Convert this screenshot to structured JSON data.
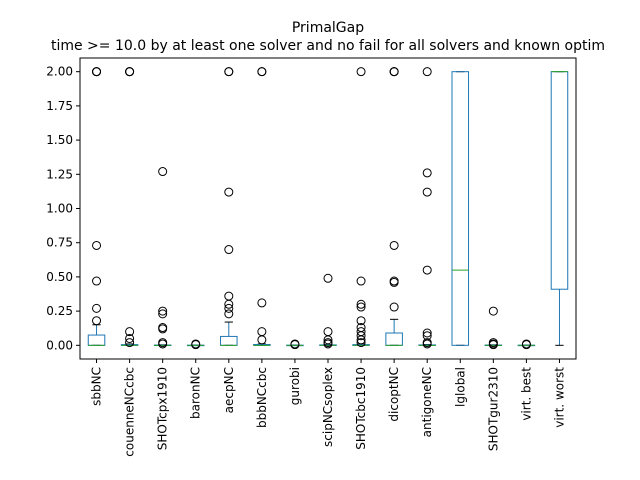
{
  "chart_data": {
    "type": "boxplot",
    "title": "PrimalGap",
    "subtitle": "time >= 10.0 by at least one solver and no fail for all solvers and known optim",
    "xlabel": "",
    "ylabel": "",
    "ylim": [
      -0.1,
      2.1
    ],
    "y_ticks": [
      "0.00",
      "0.25",
      "0.50",
      "0.75",
      "1.00",
      "1.25",
      "1.50",
      "1.75",
      "2.00"
    ],
    "grid": false,
    "categories": [
      "sbbNC",
      "couenneNCcbc",
      "SHOTcpx1910",
      "baronNC",
      "aecpNC",
      "bbbNCcbc",
      "gurobi",
      "scipNCsoplex",
      "SHOTcbc1910",
      "dicoptNC",
      "antigoneNC",
      "lglobal",
      "SHOTgur2310",
      "virt. best",
      "virt. worst"
    ],
    "boxes": [
      {
        "q1": 0.0,
        "median": 0.0,
        "q3": 0.075,
        "whisker_low": 0.0,
        "whisker_high": 0.15,
        "outliers": [
          2.0,
          2.0,
          2.0,
          0.73,
          0.47,
          0.27,
          0.18
        ]
      },
      {
        "q1": 0.0,
        "median": 0.0,
        "q3": 0.005,
        "whisker_low": 0.0,
        "whisker_high": 0.01,
        "outliers": [
          2.0,
          2.0,
          2.0,
          0.1,
          0.05,
          0.02
        ]
      },
      {
        "q1": 0.0,
        "median": 0.0,
        "q3": 0.002,
        "whisker_low": 0.0,
        "whisker_high": 0.004,
        "outliers": [
          1.27,
          0.25,
          0.23,
          0.13,
          0.12,
          0.02,
          0.01
        ]
      },
      {
        "q1": 0.0,
        "median": 0.0,
        "q3": 0.001,
        "whisker_low": 0.0,
        "whisker_high": 0.002,
        "outliers": [
          0.01,
          0.005
        ]
      },
      {
        "q1": 0.0,
        "median": 0.0,
        "q3": 0.065,
        "whisker_low": 0.0,
        "whisker_high": 0.17,
        "outliers": [
          2.0,
          2.0,
          1.12,
          0.7,
          0.36,
          0.3,
          0.27,
          0.23
        ]
      },
      {
        "q1": 0.0,
        "median": 0.0,
        "q3": 0.006,
        "whisker_low": 0.0,
        "whisker_high": 0.01,
        "outliers": [
          2.0,
          2.0,
          0.31,
          0.1,
          0.04
        ]
      },
      {
        "q1": 0.0,
        "median": 0.0,
        "q3": 0.001,
        "whisker_low": 0.0,
        "whisker_high": 0.002,
        "outliers": [
          0.01,
          0.005
        ]
      },
      {
        "q1": 0.0,
        "median": 0.0,
        "q3": 0.003,
        "whisker_low": 0.0,
        "whisker_high": 0.006,
        "outliers": [
          0.49,
          0.1,
          0.04,
          0.02,
          0.01
        ]
      },
      {
        "q1": 0.0,
        "median": 0.0,
        "q3": 0.005,
        "whisker_low": 0.0,
        "whisker_high": 0.01,
        "outliers": [
          2.0,
          0.47,
          0.3,
          0.28,
          0.18,
          0.13,
          0.1,
          0.07,
          0.04,
          0.02
        ]
      },
      {
        "q1": 0.0,
        "median": 0.0,
        "q3": 0.09,
        "whisker_low": 0.0,
        "whisker_high": 0.19,
        "outliers": [
          2.0,
          2.0,
          2.0,
          0.73,
          0.47,
          0.46,
          0.28
        ]
      },
      {
        "q1": 0.0,
        "median": 0.0,
        "q3": 0.003,
        "whisker_low": 0.0,
        "whisker_high": 0.006,
        "outliers": [
          2.0,
          1.26,
          1.12,
          0.55,
          0.09,
          0.07,
          0.02,
          0.01
        ]
      },
      {
        "q1": 0.0,
        "median": 0.55,
        "q3": 2.0,
        "whisker_low": 0.0,
        "whisker_high": 2.0,
        "outliers": []
      },
      {
        "q1": 0.0,
        "median": 0.0,
        "q3": 0.002,
        "whisker_low": 0.0,
        "whisker_high": 0.004,
        "outliers": [
          0.25,
          0.02,
          0.01,
          0.005
        ]
      },
      {
        "q1": 0.0,
        "median": 0.0,
        "q3": 0.001,
        "whisker_low": 0.0,
        "whisker_high": 0.002,
        "outliers": [
          0.01,
          0.005
        ]
      },
      {
        "q1": 0.41,
        "median": 2.0,
        "q3": 2.0,
        "whisker_low": 0.0,
        "whisker_high": 2.0,
        "outliers": []
      }
    ],
    "colors": {
      "box": "#1f77b4",
      "median": "#2ca02c",
      "whisker": "#1f77b4",
      "outlier": "#000000"
    }
  }
}
